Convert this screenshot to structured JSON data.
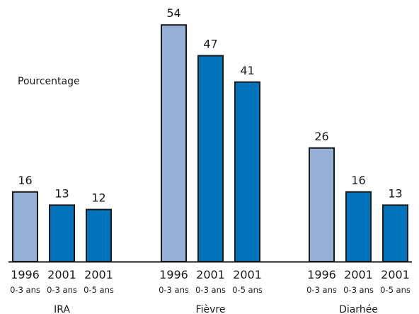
{
  "chart_data": {
    "type": "bar",
    "ylabel": "Pourcentage",
    "ylim": [
      0,
      60
    ],
    "groups": [
      {
        "label": "IRA",
        "bars": [
          {
            "year": "1996",
            "age": "0-3 ans",
            "value": 16,
            "value_label": "16",
            "color": "#96b0d6"
          },
          {
            "year": "2001",
            "age": "0-3 ans",
            "value": 13,
            "value_label": "13",
            "color": "#0073bb"
          },
          {
            "year": "2001",
            "age": "0-5 ans",
            "value": 12,
            "value_label": "12",
            "color": "#0073bb"
          }
        ]
      },
      {
        "label": "Fièvre",
        "bars": [
          {
            "year": "1996",
            "age": "0-3 ans",
            "value": 54,
            "value_label": "54",
            "color": "#96b0d6"
          },
          {
            "year": "2001",
            "age": "0-3 ans",
            "value": 47,
            "value_label": "47",
            "color": "#0073bb"
          },
          {
            "year": "2001",
            "age": "0-5 ans",
            "value": 41,
            "value_label": "41",
            "color": "#0073bb"
          }
        ]
      },
      {
        "label": "Diarhée",
        "bars": [
          {
            "year": "1996",
            "age": "0-3 ans",
            "value": 26,
            "value_label": "26",
            "color": "#96b0d6"
          },
          {
            "year": "2001",
            "age": "0-3 ans",
            "value": 16,
            "value_label": "16",
            "color": "#0073bb"
          },
          {
            "year": "2001",
            "age": "0-5 ans",
            "value": 13,
            "value_label": "13",
            "color": "#0073bb"
          }
        ]
      }
    ],
    "grid": false,
    "legend": "none",
    "colors": {
      "light_bar": "#96b0d6",
      "dark_bar": "#0073bb",
      "outline": "#1a1a1a",
      "baseline": "#1a1a1a"
    }
  }
}
